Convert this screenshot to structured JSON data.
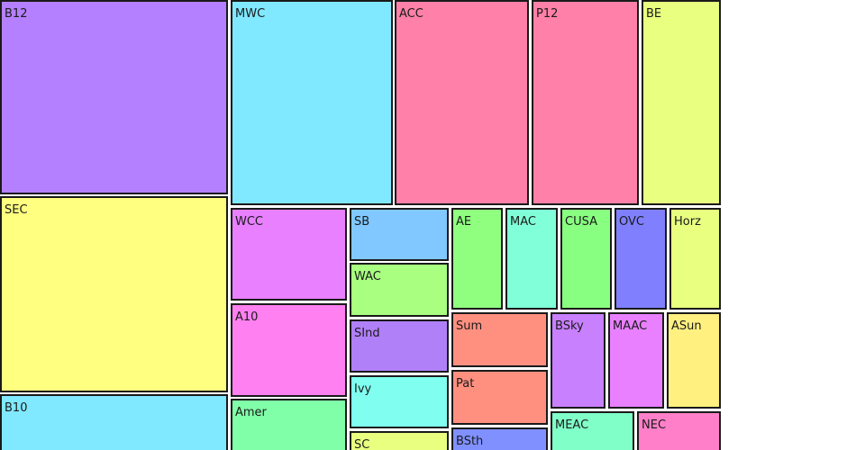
{
  "chart_data": {
    "type": "treemap",
    "title": "",
    "items": [
      {
        "name": "B12",
        "color": "#b580ff"
      },
      {
        "name": "SEC",
        "color": "#ffff80"
      },
      {
        "name": "B10",
        "color": "#80e8ff"
      },
      {
        "name": "MWC",
        "color": "#80e8ff"
      },
      {
        "name": "ACC",
        "color": "#ff80a8"
      },
      {
        "name": "P12",
        "color": "#ff80a8"
      },
      {
        "name": "BE",
        "color": "#e8ff80"
      },
      {
        "name": "WCC",
        "color": "#e880ff"
      },
      {
        "name": "A10",
        "color": "#ff80f0"
      },
      {
        "name": "Amer",
        "color": "#80ffa8"
      },
      {
        "name": "SB",
        "color": "#80c8ff"
      },
      {
        "name": "WAC",
        "color": "#a8ff80"
      },
      {
        "name": "SInd",
        "color": "#b080f8"
      },
      {
        "name": "Ivy",
        "color": "#80fff0"
      },
      {
        "name": "SC",
        "color": "#e8ff80"
      },
      {
        "name": "AE",
        "color": "#90ff80"
      },
      {
        "name": "MAC",
        "color": "#80ffd8"
      },
      {
        "name": "CUSA",
        "color": "#88ff80"
      },
      {
        "name": "OVC",
        "color": "#8080ff"
      },
      {
        "name": "Horz",
        "color": "#e8ff80"
      },
      {
        "name": "Sum",
        "color": "#ff9080"
      },
      {
        "name": "Pat",
        "color": "#ff9080"
      },
      {
        "name": "BSth",
        "color": "#8090ff"
      },
      {
        "name": "BSky",
        "color": "#c880ff"
      },
      {
        "name": "MAAC",
        "color": "#e880ff"
      },
      {
        "name": "ASun",
        "color": "#fff080"
      },
      {
        "name": "MEAC",
        "color": "#80ffc8"
      },
      {
        "name": "NEC",
        "color": "#ff80c8"
      }
    ]
  }
}
